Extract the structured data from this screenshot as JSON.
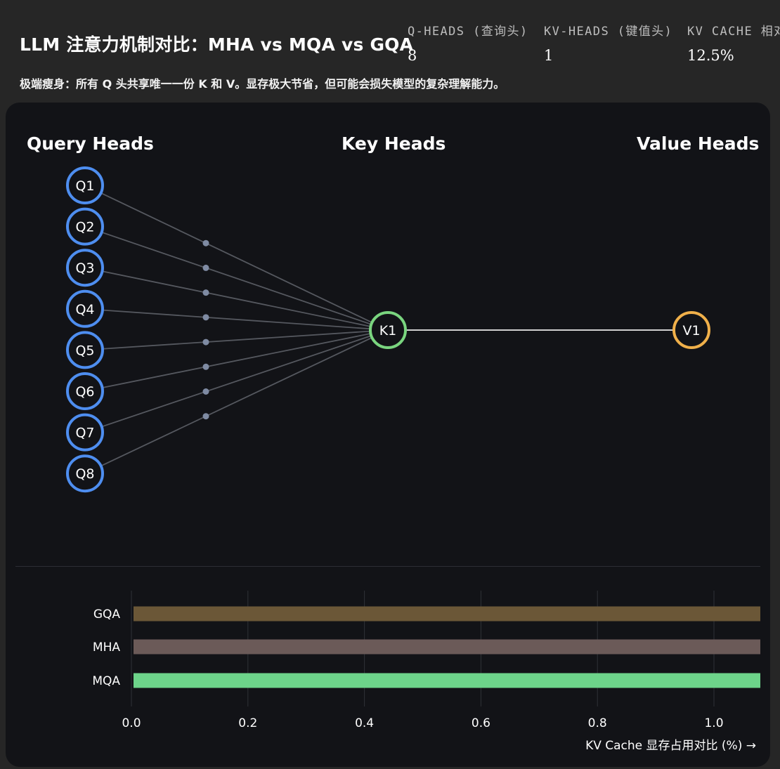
{
  "header": {
    "title": "LLM 注意力机制对比：MHA vs MQA vs GQA",
    "subtitle": "极端瘦身：所有 Q 头共享唯一一份 K 和 V。显存极大节省，但可能会损失模型的复杂理解能力。"
  },
  "stats": [
    {
      "label": "Q-HEADS (查询头)",
      "value": "8"
    },
    {
      "label": "KV-HEADS (键值头)",
      "value": "1"
    },
    {
      "label": "KV CACHE 相对",
      "value": "12.5%"
    }
  ],
  "diagram": {
    "query_heading": "Query Heads",
    "key_heading": "Key Heads",
    "value_heading": "Value Heads",
    "query_nodes": [
      "Q1",
      "Q2",
      "Q3",
      "Q4",
      "Q5",
      "Q6",
      "Q7",
      "Q8"
    ],
    "key_nodes": [
      "K1"
    ],
    "value_nodes": [
      "V1"
    ],
    "colors": {
      "query": "#4e8ef0",
      "key": "#7ad57f",
      "value": "#f0b04a",
      "edge": "#55585f",
      "kv_link": "#d0d0d0"
    }
  },
  "chart_data": {
    "type": "bar",
    "orientation": "horizontal",
    "categories": [
      "GQA",
      "MHA",
      "MQA"
    ],
    "values": [
      1.08,
      1.08,
      1.08
    ],
    "colors": [
      "#6b5737",
      "#6b5a58",
      "#6dd48a"
    ],
    "xticks": [
      "0.0",
      "0.2",
      "0.4",
      "0.6",
      "0.8",
      "1.0"
    ],
    "xlim": [
      0,
      1.08
    ],
    "xlabel": "KV Cache 显存占用对比 (%) →",
    "grid": true
  }
}
